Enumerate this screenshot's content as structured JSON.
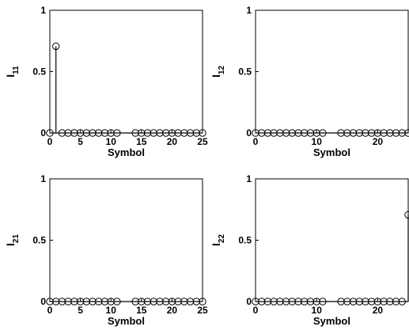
{
  "chart_data": [
    {
      "type": "stem",
      "ylabel": "I",
      "ylabel_subscript": "11",
      "xlabel": "Symbol",
      "xlim": [
        0,
        25
      ],
      "ylim": [
        0,
        1
      ],
      "xticks": [
        "0",
        "5",
        "10",
        "15",
        "20",
        "25"
      ],
      "yticks": [
        "0",
        "0.5",
        "1"
      ],
      "x": [
        0,
        1,
        2,
        3,
        4,
        5,
        6,
        7,
        8,
        9,
        10,
        11,
        14,
        15,
        16,
        17,
        18,
        19,
        20,
        21,
        22,
        23,
        24,
        25
      ],
      "values": [
        0,
        0.707,
        0,
        0,
        0,
        0,
        0,
        0,
        0,
        0,
        0,
        0,
        0,
        0,
        0,
        0,
        0,
        0,
        0,
        0,
        0,
        0,
        0,
        0
      ]
    },
    {
      "type": "stem",
      "ylabel": "I",
      "ylabel_subscript": "12",
      "xlabel": "Symbol",
      "xlim": [
        0,
        25
      ],
      "ylim": [
        0,
        1
      ],
      "xticks": [
        "0",
        "10",
        "20"
      ],
      "yticks": [
        "0",
        "0.5",
        "1"
      ],
      "x": [
        0,
        1,
        2,
        3,
        4,
        5,
        6,
        7,
        8,
        9,
        10,
        11,
        14,
        15,
        16,
        17,
        18,
        19,
        20,
        21,
        22,
        23,
        24,
        25
      ],
      "values": [
        0,
        0,
        0,
        0,
        0,
        0,
        0,
        0,
        0,
        0,
        0,
        0,
        0,
        0,
        0,
        0,
        0,
        0,
        0,
        0,
        0,
        0,
        0,
        0
      ]
    },
    {
      "type": "stem",
      "ylabel": "I",
      "ylabel_subscript": "21",
      "xlabel": "Symbol",
      "xlim": [
        0,
        25
      ],
      "ylim": [
        0,
        1
      ],
      "xticks": [
        "0",
        "5",
        "10",
        "15",
        "20",
        "25"
      ],
      "yticks": [
        "0",
        "0.5",
        "1"
      ],
      "x": [
        0,
        1,
        2,
        3,
        4,
        5,
        6,
        7,
        8,
        9,
        10,
        11,
        14,
        15,
        16,
        17,
        18,
        19,
        20,
        21,
        22,
        23,
        24,
        25
      ],
      "values": [
        0,
        0,
        0,
        0,
        0,
        0,
        0,
        0,
        0,
        0,
        0,
        0,
        0,
        0,
        0,
        0,
        0,
        0,
        0,
        0,
        0,
        0,
        0,
        0
      ]
    },
    {
      "type": "stem",
      "ylabel": "I",
      "ylabel_subscript": "22",
      "xlabel": "Symbol",
      "xlim": [
        0,
        25
      ],
      "ylim": [
        0,
        1
      ],
      "xticks": [
        "0",
        "10",
        "20"
      ],
      "yticks": [
        "0",
        "0.5",
        "1"
      ],
      "x": [
        0,
        1,
        2,
        3,
        4,
        5,
        6,
        7,
        8,
        9,
        10,
        11,
        14,
        15,
        16,
        17,
        18,
        19,
        20,
        21,
        22,
        23,
        24,
        25
      ],
      "values": [
        0,
        0,
        0,
        0,
        0,
        0,
        0,
        0,
        0,
        0,
        0,
        0,
        0,
        0,
        0,
        0,
        0,
        0,
        0,
        0,
        0,
        0,
        0,
        0.707
      ]
    }
  ],
  "style": {
    "line_color": "#000000",
    "marker": "open-circle",
    "background": "#ffffff"
  }
}
